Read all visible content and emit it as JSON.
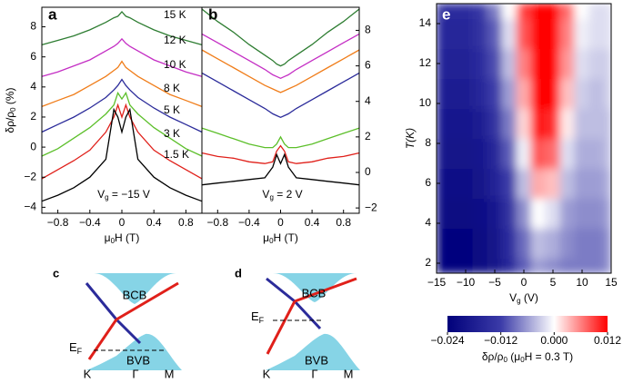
{
  "chart_data": [
    {
      "type": "line",
      "panel_label": "a",
      "x": [
        -1,
        -0.8,
        -0.6,
        -0.4,
        -0.2,
        -0.1,
        -0.05,
        0,
        0.05,
        0.1,
        0.2,
        0.4,
        0.6,
        0.8,
        1
      ],
      "xlim": [
        -1,
        1
      ],
      "xticks": [
        {
          "value": -0.8,
          "label": "−0.8"
        },
        {
          "value": -0.4,
          "label": "−0.4"
        },
        0,
        0.4,
        0.8
      ],
      "ylim": [
        -4.4,
        9.3
      ],
      "yticks": [
        {
          "value": -4,
          "label": "−4"
        },
        {
          "value": -2,
          "label": "−2"
        },
        0,
        2,
        4,
        6,
        8
      ],
      "yaxis_side": "left",
      "xlabel": [
        "μ",
        "0",
        "H (T)"
      ],
      "ylabel": [
        "δρ/ρ",
        "0",
        " (%)"
      ],
      "annotation": [
        "V",
        "g",
        " = −15 V"
      ],
      "series": [
        {
          "name": "15 K",
          "color": "#2e7d32",
          "values": [
            6.8,
            7.1,
            7.4,
            7.8,
            8.3,
            8.6,
            8.7,
            9.0,
            8.7,
            8.6,
            8.3,
            7.8,
            7.4,
            7.1,
            6.8
          ]
        },
        {
          "name": "12 K",
          "color": "#c42ec4",
          "values": [
            4.7,
            5.0,
            5.4,
            5.8,
            6.4,
            6.7,
            6.9,
            7.2,
            6.9,
            6.7,
            6.4,
            5.8,
            5.4,
            5.0,
            4.7
          ]
        },
        {
          "name": "10 K",
          "color": "#f07d1a",
          "values": [
            2.7,
            3.1,
            3.5,
            4.1,
            4.7,
            5.1,
            5.3,
            5.7,
            5.3,
            5.1,
            4.7,
            4.1,
            3.5,
            3.1,
            2.7
          ]
        },
        {
          "name": "8 K",
          "color": "#2b2b9a",
          "values": [
            1.0,
            1.5,
            2.0,
            2.6,
            3.3,
            3.8,
            4.1,
            4.5,
            4.1,
            3.8,
            3.3,
            2.6,
            2.0,
            1.5,
            1.0
          ]
        },
        {
          "name": "5 K",
          "color": "#5cbf2a",
          "values": [
            -0.6,
            -0.1,
            0.6,
            1.3,
            2.2,
            2.8,
            3.6,
            3.2,
            3.6,
            2.8,
            2.2,
            1.3,
            0.6,
            -0.1,
            -0.6
          ]
        },
        {
          "name": "3 K",
          "color": "#e0201a",
          "values": [
            -2.1,
            -1.5,
            -0.9,
            -0.2,
            1.0,
            2.0,
            2.8,
            2.0,
            2.8,
            2.0,
            1.0,
            -0.2,
            -0.9,
            -1.5,
            -2.1
          ]
        },
        {
          "name": "1.5 K",
          "color": "#000000",
          "values": [
            -3.6,
            -3.2,
            -2.7,
            -2.0,
            -0.8,
            2.5,
            2.0,
            1.0,
            2.0,
            2.5,
            -0.8,
            -2.0,
            -2.7,
            -3.2,
            -3.6
          ]
        }
      ]
    },
    {
      "type": "line",
      "panel_label": "b",
      "x": [
        -1,
        -0.8,
        -0.6,
        -0.4,
        -0.2,
        -0.1,
        -0.05,
        0,
        0.05,
        0.1,
        0.2,
        0.4,
        0.6,
        0.8,
        1
      ],
      "xlim": [
        -1,
        1
      ],
      "xticks": [
        {
          "value": -0.8,
          "label": "−0.8"
        },
        {
          "value": -0.4,
          "label": "−0.4"
        },
        0,
        0.4,
        0.8
      ],
      "ylim": [
        -2.3,
        9.3
      ],
      "yticks": [
        {
          "value": -2,
          "label": "−2"
        },
        0,
        2,
        4,
        6,
        8
      ],
      "yaxis_side": "right",
      "xlabel": [
        "μ",
        "0",
        "H (T)"
      ],
      "annotation": [
        "V",
        "g",
        " = 2 V"
      ],
      "series": [
        {
          "color": "#2e7d32",
          "values": [
            9.2,
            8.5,
            7.9,
            7.2,
            6.6,
            6.3,
            6.1,
            6.0,
            6.1,
            6.3,
            6.6,
            7.2,
            7.9,
            8.5,
            9.2
          ]
        },
        {
          "color": "#c42ec4",
          "values": [
            7.8,
            7.3,
            6.8,
            6.3,
            5.8,
            5.5,
            5.4,
            5.3,
            5.4,
            5.5,
            5.8,
            6.3,
            6.8,
            7.3,
            7.8
          ]
        },
        {
          "color": "#f07d1a",
          "values": [
            6.9,
            6.4,
            5.9,
            5.4,
            4.9,
            4.7,
            4.6,
            4.5,
            4.6,
            4.7,
            4.9,
            5.4,
            5.9,
            6.4,
            6.9
          ]
        },
        {
          "color": "#2b2b9a",
          "values": [
            5.6,
            5.1,
            4.6,
            4.1,
            3.6,
            3.3,
            3.2,
            3.1,
            3.2,
            3.3,
            3.6,
            4.1,
            4.6,
            5.1,
            5.6
          ]
        },
        {
          "color": "#5cbf2a",
          "values": [
            2.5,
            2.2,
            1.9,
            1.6,
            1.4,
            1.4,
            1.6,
            2.0,
            1.6,
            1.4,
            1.4,
            1.6,
            1.9,
            2.2,
            2.5
          ]
        },
        {
          "color": "#e0201a",
          "values": [
            1.1,
            0.9,
            0.8,
            0.6,
            0.5,
            0.6,
            1.2,
            1.5,
            1.2,
            0.6,
            0.5,
            0.6,
            0.8,
            0.9,
            1.1
          ]
        },
        {
          "color": "#000000",
          "values": [
            -0.7,
            -0.6,
            -0.5,
            -0.4,
            -0.3,
            0.3,
            1.0,
            0.5,
            1.0,
            0.3,
            -0.3,
            -0.4,
            -0.5,
            -0.6,
            -0.7
          ]
        }
      ]
    },
    {
      "type": "heatmap",
      "panel_label": "e",
      "x": [
        -15,
        -12.5,
        -10,
        -7.5,
        -5,
        -2.5,
        0,
        2.5,
        5,
        7.5,
        10,
        12.5,
        15
      ],
      "y": [
        1.5,
        3,
        4.5,
        6,
        7.5,
        9,
        10.5,
        12,
        13.5,
        15
      ],
      "z": [
        [
          -0.022,
          -0.023,
          -0.023,
          -0.022,
          -0.02,
          -0.016,
          -0.01,
          -0.006,
          -0.007,
          -0.008,
          -0.008,
          -0.008,
          -0.007
        ],
        [
          -0.022,
          -0.023,
          -0.023,
          -0.022,
          -0.02,
          -0.015,
          -0.009,
          -0.004,
          -0.005,
          -0.007,
          -0.008,
          -0.008,
          -0.007
        ],
        [
          -0.021,
          -0.022,
          -0.022,
          -0.021,
          -0.019,
          -0.014,
          -0.007,
          0.0,
          -0.002,
          -0.006,
          -0.007,
          -0.007,
          -0.006
        ],
        [
          -0.02,
          -0.021,
          -0.021,
          -0.02,
          -0.017,
          -0.012,
          -0.004,
          0.004,
          0.003,
          -0.004,
          -0.006,
          -0.006,
          -0.005
        ],
        [
          -0.019,
          -0.02,
          -0.02,
          -0.019,
          -0.016,
          -0.01,
          -0.001,
          0.008,
          0.007,
          -0.002,
          -0.005,
          -0.005,
          -0.004
        ],
        [
          -0.018,
          -0.019,
          -0.019,
          -0.018,
          -0.014,
          -0.008,
          0.002,
          0.011,
          0.01,
          0.001,
          -0.004,
          -0.004,
          -0.004
        ],
        [
          -0.017,
          -0.018,
          -0.018,
          -0.016,
          -0.012,
          -0.006,
          0.004,
          0.012,
          0.012,
          0.003,
          -0.003,
          -0.004,
          -0.003
        ],
        [
          -0.016,
          -0.017,
          -0.017,
          -0.015,
          -0.011,
          -0.004,
          0.006,
          0.012,
          0.012,
          0.005,
          -0.002,
          -0.003,
          -0.003
        ],
        [
          -0.015,
          -0.016,
          -0.016,
          -0.014,
          -0.01,
          -0.002,
          0.008,
          0.012,
          0.012,
          0.006,
          -0.001,
          -0.002,
          -0.002
        ],
        [
          -0.014,
          -0.015,
          -0.015,
          -0.013,
          -0.008,
          0.0,
          0.009,
          0.012,
          0.012,
          0.007,
          0.0,
          -0.002,
          -0.002
        ]
      ],
      "xlim": [
        -15,
        15
      ],
      "xticks": [
        {
          "value": -15,
          "label": "−15"
        },
        {
          "value": -10,
          "label": "−10"
        },
        {
          "value": -5,
          "label": "−5"
        },
        0,
        5,
        10,
        15
      ],
      "ylim": [
        1.5,
        15
      ],
      "yticks": [
        2,
        4,
        6,
        8,
        10,
        12,
        14
      ],
      "xlabel": [
        "V",
        "g",
        " (V)"
      ],
      "ylabel": "T(K)",
      "colorbar": {
        "lim": [
          -0.024,
          0.012
        ],
        "ticks": [
          {
            "value": -0.024,
            "label": "−0.024"
          },
          {
            "value": -0.012,
            "label": "−0.012"
          },
          {
            "value": 0,
            "label": "0.000"
          },
          {
            "value": 0.012,
            "label": "0.012"
          }
        ],
        "label": [
          "δρ/ρ",
          "0",
          " (μ",
          "0",
          "H = 0.3 T)"
        ],
        "stops": [
          {
            "value": -0.024,
            "color": "#00007a"
          },
          {
            "value": -0.012,
            "color": "#3b3ba8"
          },
          {
            "value": 0,
            "color": "#ffffff"
          },
          {
            "value": 0.012,
            "color": "#ff0000"
          }
        ]
      }
    }
  ],
  "diagrams": [
    {
      "label": "c",
      "conduction": "BCB",
      "valence": "BVB",
      "fermi": [
        "E",
        "F"
      ],
      "k_points": [
        "K",
        "Γ",
        "M"
      ]
    },
    {
      "label": "d",
      "conduction": "BCB",
      "valence": "BVB",
      "fermi": [
        "E",
        "F"
      ],
      "k_points": [
        "K",
        "Γ",
        "M"
      ]
    }
  ]
}
